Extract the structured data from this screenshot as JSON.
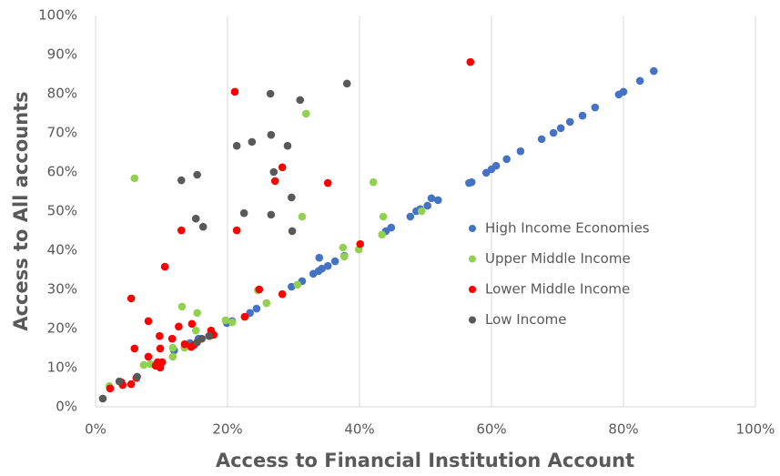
{
  "chart_data": {
    "type": "scatter",
    "xlabel": "Access to Financial Institution Account",
    "ylabel": "Access to All accounts",
    "xlim": [
      0,
      100
    ],
    "ylim": [
      0,
      100
    ],
    "xticks": [
      {
        "value": 0,
        "label": "0%"
      },
      {
        "value": 20,
        "label": "20%"
      },
      {
        "value": 40,
        "label": "40%"
      },
      {
        "value": 60,
        "label": "60%"
      },
      {
        "value": 80,
        "label": "80%"
      },
      {
        "value": 100,
        "label": "100%"
      }
    ],
    "yticks": [
      {
        "value": 0,
        "label": "0%"
      },
      {
        "value": 10,
        "label": "10%"
      },
      {
        "value": 20,
        "label": "20%"
      },
      {
        "value": 30,
        "label": "30%"
      },
      {
        "value": 40,
        "label": "40%"
      },
      {
        "value": 50,
        "label": "50%"
      },
      {
        "value": 60,
        "label": "60%"
      },
      {
        "value": 70,
        "label": "70%"
      },
      {
        "value": 80,
        "label": "80%"
      },
      {
        "value": 90,
        "label": "90%"
      },
      {
        "value": 100,
        "label": "100%"
      }
    ],
    "xgrid": true,
    "legend": "right",
    "series": [
      {
        "name": "High Income Economies",
        "color": "#4472c4",
        "x": [
          84.6,
          82.5,
          80,
          79.3,
          75.7,
          73.8,
          71.9,
          70.5,
          69.4,
          67.6,
          64.4,
          62.3,
          60.7,
          60,
          59.2,
          57,
          56.6,
          51.9,
          50.9,
          50.3,
          49.2,
          48.6,
          47.7,
          44.8,
          44,
          37.7,
          36.3,
          35.2,
          34.3,
          33.8,
          33,
          33.9,
          31.3,
          29.7,
          24.4,
          23.4,
          20.7,
          19.9,
          15.6,
          11.9,
          14.3
        ],
        "values": [
          85.8,
          83.3,
          80.5,
          79.8,
          76.5,
          74.4,
          72.8,
          71.2,
          70,
          68.4,
          65.3,
          63.3,
          61.6,
          60.7,
          59.8,
          57.4,
          57.2,
          52.8,
          53.3,
          51.4,
          50.5,
          50,
          48.6,
          45.8,
          44.9,
          38.6,
          37.2,
          36,
          35.3,
          34.7,
          34,
          38.1,
          32.1,
          30.7,
          25.1,
          24,
          21.9,
          21.4,
          17.4,
          14.4,
          16.3
        ]
      },
      {
        "name": "Upper Middle Income",
        "color": "#92d050",
        "x": [
          31.9,
          5.9,
          42.1,
          31.3,
          43.6,
          49.4,
          37.5,
          39.9,
          37.7,
          43.4,
          30.6,
          25.9,
          13.1,
          15.4,
          24.6,
          19.7,
          20.7,
          15.2,
          11.7,
          11.7,
          13.5,
          7.3,
          8.3,
          9.2,
          6.2,
          2.1,
          17.4
        ],
        "values": [
          74.9,
          58.4,
          57.4,
          48.6,
          48.6,
          50,
          40.7,
          40.2,
          38.4,
          44,
          31.2,
          26.5,
          25.6,
          24,
          29.8,
          22.1,
          21.6,
          19.5,
          15.1,
          12.8,
          15.1,
          10.7,
          10.9,
          10.9,
          7.4,
          5.3,
          18.1
        ]
      },
      {
        "name": "Lower Middle Income",
        "color": "#ff0000",
        "x": [
          56.8,
          21.1,
          28.3,
          27.2,
          35.2,
          21.4,
          13,
          10.5,
          5.4,
          40.1,
          24.8,
          28.3,
          22.6,
          8,
          12.6,
          14.6,
          9.7,
          11.6,
          17.5,
          17.9,
          13.5,
          14.5,
          5.9,
          9.8,
          8,
          14.9,
          9.4,
          9.8,
          9.1,
          10.1,
          2.2,
          5.4,
          3.9,
          4.1,
          6.2
        ],
        "values": [
          88.1,
          80.5,
          61.2,
          57.7,
          57.2,
          45.1,
          45.1,
          35.8,
          27.7,
          41.6,
          30,
          28.8,
          23,
          21.9,
          20.5,
          21.2,
          18.1,
          17.4,
          19.5,
          18.4,
          16,
          15.3,
          14.9,
          14.9,
          12.8,
          15.8,
          11.4,
          10,
          10.5,
          11.4,
          4.7,
          5.8,
          6.3,
          5.6,
          7.4
        ]
      },
      {
        "name": "Low Income",
        "color": "#595959",
        "x": [
          38.1,
          26.5,
          31,
          23.7,
          21.4,
          26.6,
          29.1,
          15.4,
          13,
          27,
          29.7,
          22.5,
          26.6,
          15.2,
          16.3,
          29.8,
          17.2,
          16.1,
          15.4,
          6.3,
          3.6,
          1.1
        ],
        "values": [
          82.6,
          80,
          78.4,
          67.7,
          66.7,
          69.5,
          66.7,
          59.3,
          57.9,
          60,
          53.5,
          49.5,
          49.1,
          48.1,
          46,
          44.9,
          18.1,
          17.4,
          16.5,
          7.7,
          6.5,
          2.1
        ]
      }
    ]
  }
}
